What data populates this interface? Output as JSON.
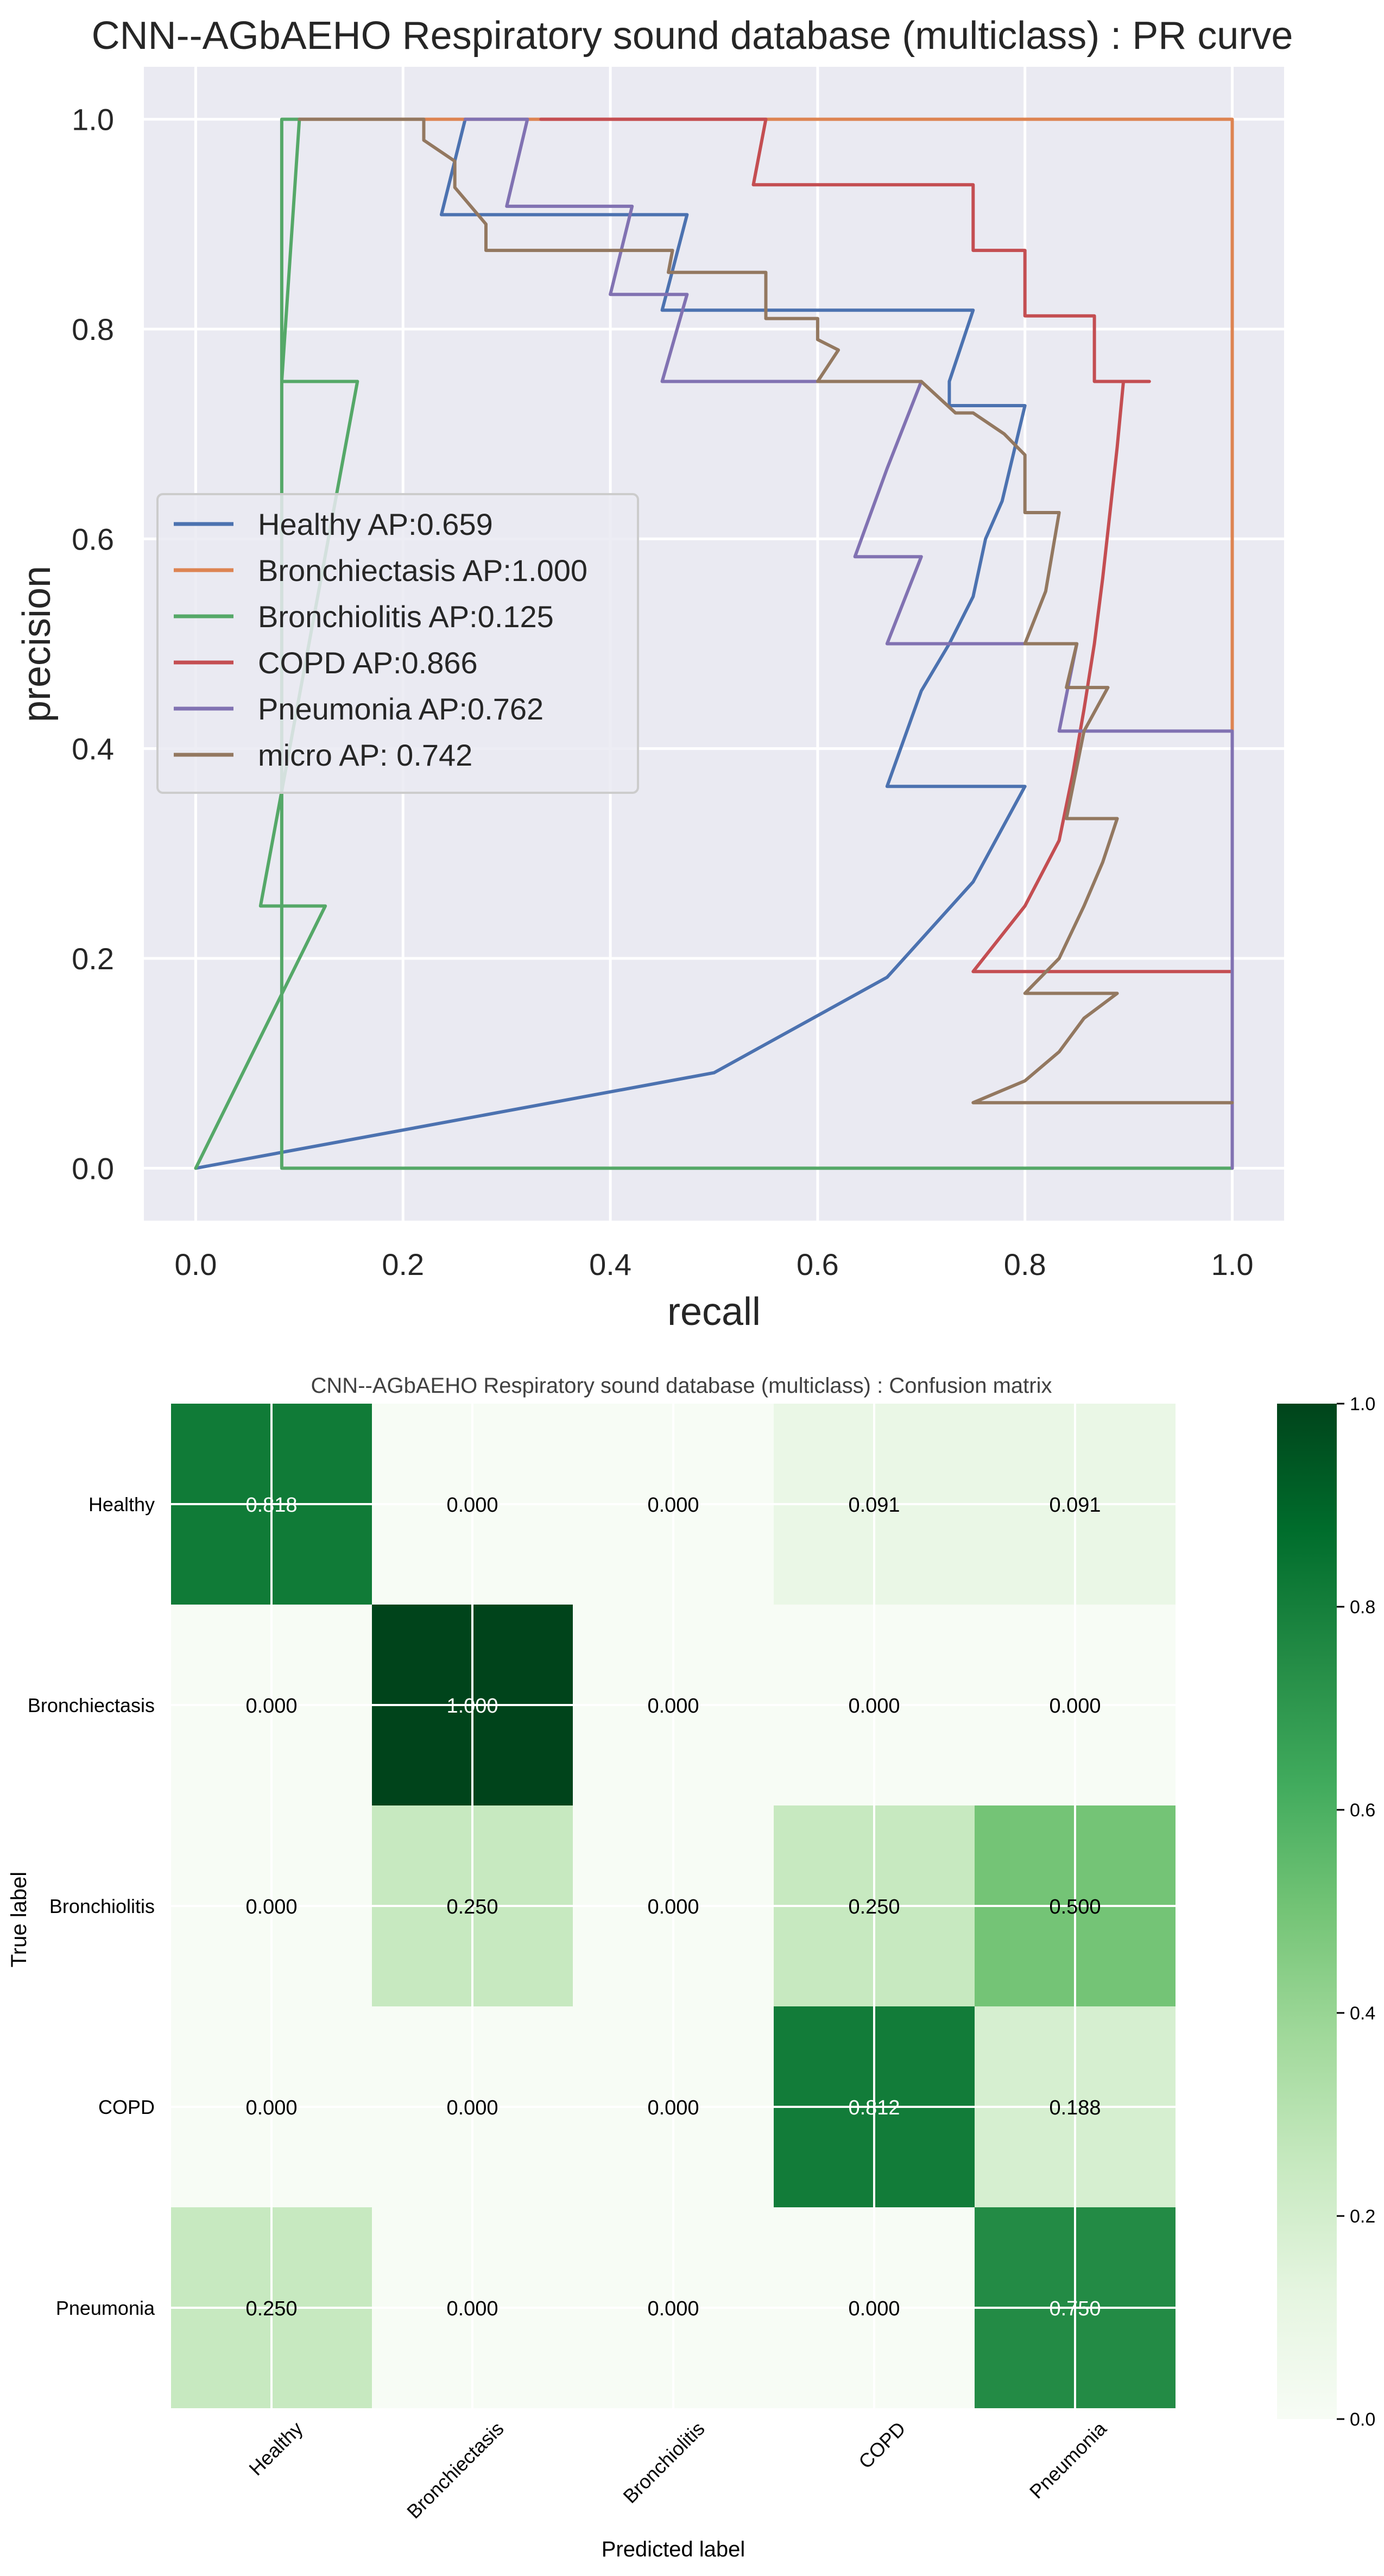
{
  "chart_data": [
    {
      "type": "line",
      "title": "CNN--AGbAEHO Respiratory sound database (multiclass) : PR curve",
      "xlabel": "recall",
      "ylabel": "precision",
      "xlim": [
        -0.05,
        1.05
      ],
      "ylim": [
        -0.05,
        1.05
      ],
      "xticks": [
        "0.0",
        "0.2",
        "0.4",
        "0.6",
        "0.8",
        "1.0"
      ],
      "yticks": [
        "0.0",
        "0.2",
        "0.4",
        "0.6",
        "0.8",
        "1.0"
      ],
      "grid": true,
      "legend_position": "center-left",
      "series": [
        {
          "name": "Healthy AP:0.659",
          "color": "#4c72b0",
          "points": [
            [
              0,
              0
            ],
            [
              0.5,
              0.091
            ],
            [
              0.667,
              0.182
            ],
            [
              0.75,
              0.273
            ],
            [
              0.8,
              0.364
            ],
            [
              0.667,
              0.364
            ],
            [
              0.7,
              0.455
            ],
            [
              0.727,
              0.5
            ],
            [
              0.75,
              0.545
            ],
            [
              0.762,
              0.6
            ],
            [
              0.778,
              0.636
            ],
            [
              0.8,
              0.727
            ],
            [
              0.727,
              0.727
            ],
            [
              0.727,
              0.75
            ],
            [
              0.75,
              0.818
            ],
            [
              0.45,
              0.818
            ],
            [
              0.474,
              0.909
            ],
            [
              0.237,
              0.909
            ],
            [
              0.26,
              1.0
            ],
            [
              0.26,
              1.0
            ]
          ]
        },
        {
          "name": "Bronchiectasis AP:1.000",
          "color": "#dd8452",
          "points": [
            [
              1.0,
              0
            ],
            [
              1.0,
              1.0
            ],
            [
              0.1,
              1.0
            ]
          ]
        },
        {
          "name": "Bronchiolitis AP:0.125",
          "color": "#55a868",
          "points": [
            [
              0,
              0
            ],
            [
              0.125,
              0.25
            ],
            [
              0.0625,
              0.25
            ],
            [
              0.156,
              0.75
            ],
            [
              0.083,
              0.75
            ],
            [
              0.1,
              1.0
            ],
            [
              0.083,
              1.0
            ],
            [
              0.083,
              0
            ],
            [
              1.0,
              0
            ]
          ]
        },
        {
          "name": "COPD AP:0.866",
          "color": "#c44e52",
          "points": [
            [
              1.0,
              0.1875
            ],
            [
              0.75,
              0.1875
            ],
            [
              0.8,
              0.25
            ],
            [
              0.833,
              0.3125
            ],
            [
              0.846,
              0.375
            ],
            [
              0.857,
              0.4375
            ],
            [
              0.867,
              0.5
            ],
            [
              0.875,
              0.5625
            ],
            [
              0.882,
              0.625
            ],
            [
              0.889,
              0.6875
            ],
            [
              0.895,
              0.75
            ],
            [
              0.9,
              0.75
            ],
            [
              0.92,
              0.75
            ],
            [
              0.867,
              0.75
            ],
            [
              0.867,
              0.8125
            ],
            [
              0.8,
              0.8125
            ],
            [
              0.8,
              0.875
            ],
            [
              0.75,
              0.875
            ],
            [
              0.75,
              0.9375
            ],
            [
              0.538,
              0.9375
            ],
            [
              0.55,
              1.0
            ],
            [
              0.55,
              1.0
            ],
            [
              0.333,
              1.0
            ]
          ]
        },
        {
          "name": "Pneumonia AP:0.762",
          "color": "#8172b2",
          "points": [
            [
              1.0,
              0
            ],
            [
              1.0,
              0.4167
            ],
            [
              0.833,
              0.4167
            ],
            [
              0.85,
              0.5
            ],
            [
              0.667,
              0.5
            ],
            [
              0.7,
              0.583
            ],
            [
              0.636,
              0.583
            ],
            [
              0.667,
              0.667
            ],
            [
              0.7,
              0.75
            ],
            [
              0.45,
              0.75
            ],
            [
              0.474,
              0.833
            ],
            [
              0.4,
              0.833
            ],
            [
              0.421,
              0.917
            ],
            [
              0.3,
              0.917
            ],
            [
              0.32,
              1.0
            ],
            [
              0.26,
              1.0
            ]
          ]
        },
        {
          "name": "micro AP: 0.742",
          "color": "#937860",
          "points": [
            [
              1.0,
              0.0625
            ],
            [
              0.75,
              0.0625
            ],
            [
              0.8,
              0.0833
            ],
            [
              0.833,
              0.111
            ],
            [
              0.857,
              0.143
            ],
            [
              0.889,
              0.1667
            ],
            [
              0.8,
              0.1667
            ],
            [
              0.833,
              0.2
            ],
            [
              0.857,
              0.25
            ],
            [
              0.875,
              0.2917
            ],
            [
              0.889,
              0.3333
            ],
            [
              0.84,
              0.3333
            ],
            [
              0.857,
              0.4167
            ],
            [
              0.88,
              0.4583
            ],
            [
              0.84,
              0.4583
            ],
            [
              0.85,
              0.5
            ],
            [
              0.8,
              0.5
            ],
            [
              0.82,
              0.55
            ],
            [
              0.833,
              0.625
            ],
            [
              0.8,
              0.625
            ],
            [
              0.8,
              0.65
            ],
            [
              0.8,
              0.68
            ],
            [
              0.78,
              0.7
            ],
            [
              0.75,
              0.72
            ],
            [
              0.733,
              0.72
            ],
            [
              0.7,
              0.75
            ],
            [
              0.6,
              0.75
            ],
            [
              0.62,
              0.78
            ],
            [
              0.6,
              0.79
            ],
            [
              0.6,
              0.81
            ],
            [
              0.55,
              0.81
            ],
            [
              0.55,
              0.854
            ],
            [
              0.456,
              0.854
            ],
            [
              0.46,
              0.875
            ],
            [
              0.28,
              0.875
            ],
            [
              0.28,
              0.9
            ],
            [
              0.25,
              0.935
            ],
            [
              0.25,
              0.96
            ],
            [
              0.22,
              0.98
            ],
            [
              0.22,
              1.0
            ],
            [
              0.1,
              1.0
            ]
          ]
        }
      ]
    },
    {
      "type": "heatmap",
      "title": "CNN--AGbAEHO Respiratory sound database (multiclass) : Confusion matrix",
      "xlabel": "Predicted label",
      "ylabel": "True label",
      "row_labels": [
        "Healthy",
        "Bronchiectasis",
        "Bronchiolitis",
        "COPD",
        "Pneumonia"
      ],
      "col_labels": [
        "Healthy",
        "Bronchiectasis",
        "Bronchiolitis",
        "COPD",
        "Pneumonia"
      ],
      "values": [
        [
          0.818,
          0.0,
          0.0,
          0.091,
          0.091
        ],
        [
          0.0,
          1.0,
          0.0,
          0.0,
          0.0
        ],
        [
          0.0,
          0.25,
          0.0,
          0.25,
          0.5
        ],
        [
          0.0,
          0.0,
          0.0,
          0.812,
          0.188
        ],
        [
          0.25,
          0.0,
          0.0,
          0.0,
          0.75
        ]
      ],
      "value_labels": [
        [
          "0.818",
          "0.000",
          "0.000",
          "0.091",
          "0.091"
        ],
        [
          "0.000",
          "1.000",
          "0.000",
          "0.000",
          "0.000"
        ],
        [
          "0.000",
          "0.250",
          "0.000",
          "0.250",
          "0.500"
        ],
        [
          "0.000",
          "0.000",
          "0.000",
          "0.812",
          "0.188"
        ],
        [
          "0.250",
          "0.000",
          "0.000",
          "0.000",
          "0.750"
        ]
      ],
      "colormap": "Greens",
      "colorbar_range": [
        0.0,
        1.0
      ],
      "colorbar_ticks": [
        "0.0",
        "0.2",
        "0.4",
        "0.6",
        "0.8",
        "1.0"
      ]
    }
  ]
}
